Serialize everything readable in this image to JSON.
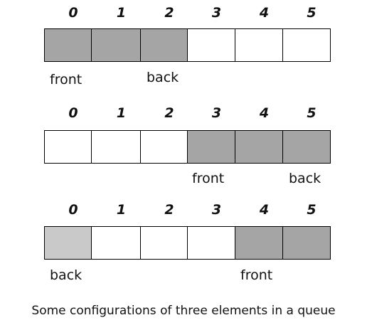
{
  "diagrams": [
    {
      "indices": [
        "0",
        "1",
        "2",
        "3",
        "4",
        "5"
      ],
      "cells": [
        "dark",
        "dark",
        "dark",
        "empty",
        "empty",
        "empty"
      ],
      "labels": [
        {
          "text": "front",
          "cell": 0
        },
        {
          "text": "back",
          "cell": 2
        }
      ]
    },
    {
      "indices": [
        "0",
        "1",
        "2",
        "3",
        "4",
        "5"
      ],
      "cells": [
        "empty",
        "empty",
        "empty",
        "dark",
        "dark",
        "dark"
      ],
      "labels": [
        {
          "text": "front",
          "cell": 3
        },
        {
          "text": "back",
          "cell": 5
        }
      ]
    },
    {
      "indices": [
        "0",
        "1",
        "2",
        "3",
        "4",
        "5"
      ],
      "cells": [
        "light",
        "empty",
        "empty",
        "empty",
        "dark",
        "dark"
      ],
      "labels": [
        {
          "text": "back",
          "cell": 0
        },
        {
          "text": "front",
          "cell": 4
        }
      ]
    }
  ],
  "colors": {
    "filled": "#a5a5a5",
    "filled_light": "#c9c9c9",
    "empty": "#ffffff",
    "border": "#000000"
  },
  "caption": "Some configurations of three elements in a queue"
}
